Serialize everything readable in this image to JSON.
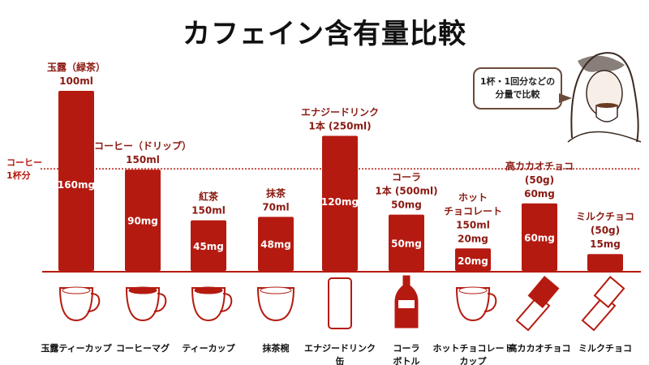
{
  "title": "カフェイン含有量比較",
  "speech_bubble": {
    "line1": "1杯・1回分などの",
    "line2": "分量で比較"
  },
  "colors": {
    "bar": "#b51a10",
    "label": "#8a1a12",
    "reference_line": "#b51a10",
    "text": "#111111"
  },
  "chart_data": {
    "type": "bar",
    "title": "カフェイン含有量比較",
    "unit": "mg",
    "categories": [
      "玉露（緑茶）",
      "コーヒー（ドリップ）",
      "紅茶",
      "抹茶",
      "エナジードリンク",
      "コーラ",
      "ホットチョコレート",
      "高カカオチョコ",
      "ミルクチョコ"
    ],
    "values": [
      160,
      90,
      45,
      48,
      120,
      50,
      20,
      60,
      15
    ],
    "value_labels": [
      "160mg",
      "90mg",
      "45mg",
      "48mg",
      "120mg",
      "50mg",
      "20mg",
      "60mg",
      ""
    ],
    "top_labels": [
      [
        "玉露（緑茶）",
        "100ml"
      ],
      [
        "コーヒー（ドリップ）",
        "150ml"
      ],
      [
        "紅茶",
        "150ml"
      ],
      [
        "抹茶",
        "70ml"
      ],
      [
        "エナジードリンク",
        "1本 (250ml)"
      ],
      [
        "コーラ",
        "1本 (500ml)",
        "50mg"
      ],
      [
        "ホット",
        "チョコレート",
        "150ml",
        "20mg"
      ],
      [
        "高カカオチョコ",
        "(50g)",
        "60mg"
      ],
      [
        "ミルクチョコ",
        "(50g)",
        "15mg"
      ]
    ],
    "bottom_labels": [
      [
        "玉露ティーカップ"
      ],
      [
        "コーヒーマグ"
      ],
      [
        "ティーカップ"
      ],
      [
        "抹茶椀"
      ],
      [
        "エナジードリンク",
        "缶"
      ],
      [
        "コーラ",
        "ボトル"
      ],
      [
        "ホットチョコレート",
        "カップ"
      ],
      [
        "高カカオチョコ"
      ],
      [
        "ミルクチョコ"
      ]
    ],
    "icons": [
      "cup-icon",
      "mug-icon",
      "teacup-icon",
      "bowl-icon",
      "can-icon",
      "bottle-icon",
      "cup-icon",
      "chocolate-icon",
      "chocolate-icon"
    ],
    "reference_line": {
      "value": 90,
      "label": [
        "コーヒー",
        "1杯分"
      ]
    },
    "ylim": [
      0,
      160
    ],
    "grid": false
  }
}
